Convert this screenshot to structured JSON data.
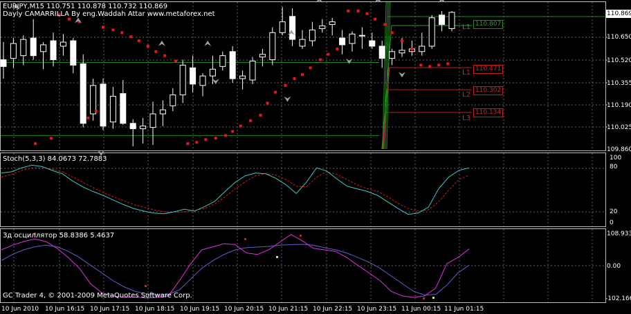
{
  "header": {
    "symbol_line": "EURJPY,M15  110.751 110.878 110.732 110.869",
    "indicator_line": "Dayly CAMARRILLA By eng.Waddah Attar  www.metaforex.net"
  },
  "price_axis": {
    "ticks": [
      "110.650",
      "110.520",
      "110.355",
      "110.190",
      "110.025",
      "109.860"
    ],
    "current_price": "110.869"
  },
  "levels": [
    {
      "name": "L1",
      "value": "110.807",
      "color": "#2e9e2e",
      "box_color": "#1e8c1e"
    },
    {
      "name": "L1",
      "value": "110.471",
      "color": "#c81e1e",
      "box_color": "#c81e1e"
    },
    {
      "name": "L2",
      "value": "110.302",
      "color": "#c81e1e",
      "box_color": "#c81e1e"
    },
    {
      "name": "L3",
      "value": "110.134",
      "color": "#c81e1e",
      "box_color": "#c81e1e"
    }
  ],
  "stoch": {
    "label": "Stoch(5,3,3) 84.0673 72.7883",
    "ticks": [
      "100",
      "80",
      "20",
      "0"
    ]
  },
  "osc": {
    "label": "Зд осциллятор 58.8386 5.4637",
    "ticks": [
      "108.933",
      "0.00",
      "-102.166"
    ]
  },
  "copyright": "GC Trader 4, © 2001-2009 MetaQuotes Software Corp.",
  "time_axis": [
    "10 Jun 2010",
    "10 Jun 16:15",
    "10 Jun 17:15",
    "10 Jun 18:15",
    "10 Jun 19:15",
    "10 Jun 20:15",
    "10 Jun 21:15",
    "10 Jun 22:15",
    "10 Jun 23:15",
    "11 Jun 00:15",
    "11 Jun 01:15"
  ],
  "colors": {
    "background": "#000000",
    "grid": "#5a6670",
    "candle": "#ffffff",
    "sar": "#e8141e",
    "stoch_main": "#40c8c8",
    "stoch_signal": "#c81e1e",
    "osc_main": "#e030e0",
    "osc_signal": "#6060d0",
    "osc_dot_red": "#e8141e",
    "osc_dot_green": "#b0ff50"
  },
  "chart_data": {
    "type": "candlestick",
    "ylim": [
      109.86,
      110.9
    ],
    "candles": [
      {
        "o": 110.52,
        "h": 110.65,
        "l": 110.38,
        "c": 110.47
      },
      {
        "o": 110.53,
        "h": 110.68,
        "l": 110.46,
        "c": 110.64
      },
      {
        "o": 110.55,
        "h": 110.7,
        "l": 110.48,
        "c": 110.67
      },
      {
        "o": 110.68,
        "h": 110.82,
        "l": 110.52,
        "c": 110.55
      },
      {
        "o": 110.58,
        "h": 110.65,
        "l": 110.45,
        "c": 110.63
      },
      {
        "o": 110.66,
        "h": 110.72,
        "l": 110.47,
        "c": 110.52
      },
      {
        "o": 110.62,
        "h": 110.71,
        "l": 110.55,
        "c": 110.65
      },
      {
        "o": 110.66,
        "h": 110.68,
        "l": 110.42,
        "c": 110.48
      },
      {
        "o": 110.49,
        "h": 110.56,
        "l": 110.02,
        "c": 110.05
      },
      {
        "o": 110.12,
        "h": 110.38,
        "l": 110.07,
        "c": 110.33
      },
      {
        "o": 110.34,
        "h": 110.38,
        "l": 110.0,
        "c": 110.03
      },
      {
        "o": 110.06,
        "h": 110.32,
        "l": 110.01,
        "c": 110.25
      },
      {
        "o": 110.27,
        "h": 110.37,
        "l": 110.04,
        "c": 110.05
      },
      {
        "o": 110.05,
        "h": 110.08,
        "l": 109.88,
        "c": 110.01
      },
      {
        "o": 110.01,
        "h": 110.09,
        "l": 109.9,
        "c": 110.03
      },
      {
        "o": 110.02,
        "h": 110.21,
        "l": 109.89,
        "c": 110.12
      },
      {
        "o": 110.12,
        "h": 110.22,
        "l": 110.03,
        "c": 110.15
      },
      {
        "o": 110.18,
        "h": 110.31,
        "l": 110.14,
        "c": 110.26
      },
      {
        "o": 110.26,
        "h": 110.52,
        "l": 110.2,
        "c": 110.48
      },
      {
        "o": 110.46,
        "h": 110.55,
        "l": 110.28,
        "c": 110.34
      },
      {
        "o": 110.33,
        "h": 110.42,
        "l": 110.25,
        "c": 110.4
      },
      {
        "o": 110.4,
        "h": 110.55,
        "l": 110.34,
        "c": 110.45
      },
      {
        "o": 110.47,
        "h": 110.58,
        "l": 110.44,
        "c": 110.55
      },
      {
        "o": 110.58,
        "h": 110.62,
        "l": 110.35,
        "c": 110.38
      },
      {
        "o": 110.38,
        "h": 110.44,
        "l": 110.3,
        "c": 110.4
      },
      {
        "o": 110.37,
        "h": 110.54,
        "l": 110.34,
        "c": 110.51
      },
      {
        "o": 110.54,
        "h": 110.6,
        "l": 110.47,
        "c": 110.56
      },
      {
        "o": 110.52,
        "h": 110.76,
        "l": 110.48,
        "c": 110.72
      },
      {
        "o": 110.72,
        "h": 110.91,
        "l": 110.7,
        "c": 110.8
      },
      {
        "o": 110.84,
        "h": 110.9,
        "l": 110.62,
        "c": 110.67
      },
      {
        "o": 110.62,
        "h": 110.74,
        "l": 110.6,
        "c": 110.67
      },
      {
        "o": 110.66,
        "h": 110.8,
        "l": 110.62,
        "c": 110.74
      },
      {
        "o": 110.75,
        "h": 110.82,
        "l": 110.72,
        "c": 110.77
      },
      {
        "o": 110.78,
        "h": 110.83,
        "l": 110.7,
        "c": 110.8
      },
      {
        "o": 110.68,
        "h": 110.74,
        "l": 110.56,
        "c": 110.63
      },
      {
        "o": 110.64,
        "h": 110.73,
        "l": 110.58,
        "c": 110.71
      },
      {
        "o": 110.7,
        "h": 110.76,
        "l": 110.6,
        "c": 110.7
      },
      {
        "o": 110.66,
        "h": 110.72,
        "l": 110.6,
        "c": 110.62
      },
      {
        "o": 110.62,
        "h": 110.66,
        "l": 110.46,
        "c": 110.53
      },
      {
        "o": 110.53,
        "h": 110.6,
        "l": 110.48,
        "c": 110.58
      },
      {
        "o": 110.57,
        "h": 110.68,
        "l": 110.54,
        "c": 110.59
      },
      {
        "o": 110.58,
        "h": 110.66,
        "l": 110.55,
        "c": 110.6
      },
      {
        "o": 110.58,
        "h": 110.72,
        "l": 110.55,
        "c": 110.62
      },
      {
        "o": 110.62,
        "h": 110.85,
        "l": 110.6,
        "c": 110.83
      },
      {
        "o": 110.85,
        "h": 110.88,
        "l": 110.73,
        "c": 110.78
      },
      {
        "o": 110.75,
        "h": 110.88,
        "l": 110.73,
        "c": 110.87
      }
    ],
    "sar": [
      {
        "i": 3.2,
        "v": 109.9
      },
      {
        "i": 4.8,
        "v": 109.94
      },
      {
        "i": 5.6,
        "v": 110.85
      },
      {
        "i": 6.6,
        "v": 110.82
      },
      {
        "i": 7.6,
        "v": 110.8
      },
      {
        "i": 8.5,
        "v": 110.09
      },
      {
        "i": 9.3,
        "v": 110.14
      },
      {
        "i": 10.0,
        "v": 110.76
      },
      {
        "i": 11.0,
        "v": 110.74
      },
      {
        "i": 11.9,
        "v": 110.72
      },
      {
        "i": 12.8,
        "v": 110.69
      },
      {
        "i": 13.6,
        "v": 110.66
      },
      {
        "i": 14.5,
        "v": 110.62
      },
      {
        "i": 15.3,
        "v": 110.58
      },
      {
        "i": 16.2,
        "v": 110.55
      },
      {
        "i": 17.3,
        "v": 110.51
      },
      {
        "i": 18.5,
        "v": 109.9
      },
      {
        "i": 19.4,
        "v": 109.91
      },
      {
        "i": 20.3,
        "v": 109.93
      },
      {
        "i": 21.3,
        "v": 109.94
      },
      {
        "i": 22.3,
        "v": 109.96
      },
      {
        "i": 23.0,
        "v": 109.99
      },
      {
        "i": 23.8,
        "v": 110.03
      },
      {
        "i": 24.8,
        "v": 110.07
      },
      {
        "i": 25.8,
        "v": 110.11
      },
      {
        "i": 26.5,
        "v": 110.2
      },
      {
        "i": 27.3,
        "v": 110.28
      },
      {
        "i": 28.3,
        "v": 110.33
      },
      {
        "i": 29.2,
        "v": 110.38
      },
      {
        "i": 30.0,
        "v": 110.41
      },
      {
        "i": 30.8,
        "v": 110.46
      },
      {
        "i": 31.8,
        "v": 110.52
      },
      {
        "i": 32.6,
        "v": 110.56
      },
      {
        "i": 33.5,
        "v": 110.6
      },
      {
        "i": 34.6,
        "v": 110.88
      },
      {
        "i": 35.6,
        "v": 110.88
      },
      {
        "i": 36.5,
        "v": 110.86
      },
      {
        "i": 37.3,
        "v": 110.82
      },
      {
        "i": 38.3,
        "v": 110.78
      },
      {
        "i": 39.0,
        "v": 110.72
      },
      {
        "i": 40.0,
        "v": 110.66
      },
      {
        "i": 41.0,
        "v": 110.6
      },
      {
        "i": 41.9,
        "v": 110.48
      },
      {
        "i": 42.8,
        "v": 110.47
      },
      {
        "i": 43.7,
        "v": 110.48
      },
      {
        "i": 44.6,
        "v": 110.49
      }
    ],
    "fractals_up": [
      {
        "i": 1.3,
        "v": 110.86
      },
      {
        "i": 7.5,
        "v": 110.76
      },
      {
        "i": 15.9,
        "v": 110.59
      },
      {
        "i": 20.5,
        "v": 110.59
      },
      {
        "i": 28.9,
        "v": 110.67
      },
      {
        "i": 31.7,
        "v": 110.91
      },
      {
        "i": 37.6,
        "v": 110.91
      },
      {
        "i": 44.0,
        "v": 110.91
      }
    ],
    "fractals_down": [
      {
        "i": 9.8,
        "v": 109.88
      },
      {
        "i": 21.3,
        "v": 110.41
      },
      {
        "i": 28.5,
        "v": 110.28
      },
      {
        "i": 34.7,
        "v": 110.56
      },
      {
        "i": 40.0,
        "v": 110.46
      }
    ],
    "green_line_1": 110.5,
    "green_line_2": 109.96,
    "stoch_main": [
      76,
      78,
      84,
      88,
      86,
      80,
      75,
      64,
      55,
      48,
      42,
      35,
      28,
      22,
      18,
      15,
      14,
      17,
      21,
      18,
      25,
      33,
      48,
      62,
      72,
      76,
      75,
      68,
      58,
      45,
      62,
      84,
      79,
      67,
      56,
      52,
      48,
      42,
      32,
      22,
      13,
      15,
      24,
      52,
      70,
      80,
      84
    ],
    "stoch_signal": [
      70,
      74,
      80,
      84,
      84,
      82,
      78,
      70,
      62,
      54,
      46,
      40,
      34,
      28,
      24,
      20,
      17,
      16,
      17,
      19,
      22,
      29,
      40,
      52,
      63,
      72,
      75,
      73,
      66,
      56,
      55,
      70,
      78,
      74,
      66,
      58,
      52,
      48,
      40,
      30,
      22,
      18,
      20,
      32,
      50,
      66,
      73
    ],
    "osc_main": [
      55,
      70,
      82,
      90,
      82,
      60,
      30,
      -5,
      -55,
      -85,
      -95,
      -100,
      -98,
      -102,
      -100,
      -95,
      -45,
      10,
      55,
      65,
      75,
      72,
      45,
      40,
      55,
      80,
      105,
      85,
      60,
      55,
      50,
      30,
      5,
      -20,
      -45,
      -80,
      -95,
      -100,
      -95,
      -70,
      10,
      30,
      58
    ],
    "osc_signal": [
      20,
      40,
      55,
      65,
      70,
      65,
      50,
      30,
      5,
      -20,
      -45,
      -65,
      -80,
      -88,
      -92,
      -90,
      -75,
      -40,
      -5,
      20,
      40,
      55,
      62,
      64,
      66,
      70,
      72,
      73,
      70,
      62,
      55,
      45,
      30,
      15,
      -5,
      -30,
      -55,
      -80,
      -92,
      -90,
      -60,
      -20,
      5
    ]
  }
}
